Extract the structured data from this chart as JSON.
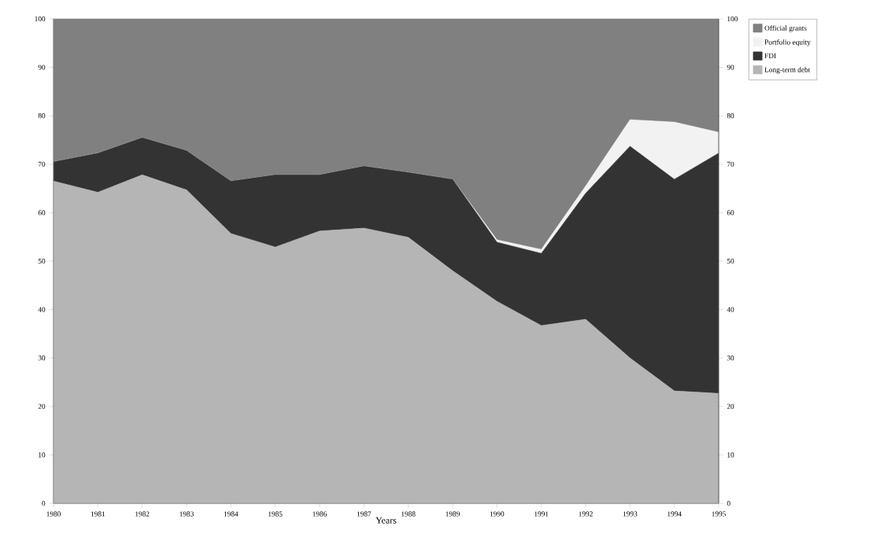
{
  "chart_data": {
    "type": "area",
    "stacked": true,
    "xlabel": "Years",
    "categories": [
      "1980",
      "1981",
      "1982",
      "1983",
      "1984",
      "1985",
      "1986",
      "1987",
      "1988",
      "1989",
      "1990",
      "1991",
      "1992",
      "1993",
      "1994",
      "1995"
    ],
    "series": [
      {
        "name": "Long-term debt",
        "color": "#b5b5b5",
        "values": [
          66.5,
          64.2,
          67.8,
          64.7,
          55.7,
          52.9,
          56.2,
          56.8,
          54.9,
          48.0,
          41.7,
          36.7,
          38,
          30,
          23.2,
          22.7
        ]
      },
      {
        "name": "FDI",
        "color": "#333333",
        "values": [
          4,
          8.1,
          7.7,
          8.1,
          10.8,
          14.9,
          11.6,
          12.8,
          13.4,
          18.9,
          12.2,
          14.9,
          26,
          43.7,
          43.7,
          49.6
        ]
      },
      {
        "name": "Portfolio equity",
        "color": "#f2f2f2",
        "values": [
          0,
          0,
          0,
          0,
          0,
          0,
          0,
          0,
          0,
          0,
          0.5,
          0.8,
          1.5,
          5.5,
          11.8,
          4.3
        ]
      },
      {
        "name": "Official grants",
        "color": "#808080",
        "values": [
          29.5,
          27.7,
          24.5,
          27.2,
          33.5,
          32.2,
          32.2,
          30.4,
          31.7,
          33.1,
          45.6,
          47.6,
          34.5,
          20.8,
          21.3,
          23.4
        ]
      }
    ],
    "ylim": [
      0,
      100
    ],
    "yticks": [
      0,
      10,
      20,
      30,
      40,
      50,
      60,
      70,
      80,
      90,
      100
    ],
    "y2lim": [
      0,
      100
    ],
    "y2ticks": [
      0,
      10,
      20,
      30,
      40,
      50,
      60,
      70,
      80,
      90,
      100
    ],
    "legend": "top right",
    "grid": false
  }
}
